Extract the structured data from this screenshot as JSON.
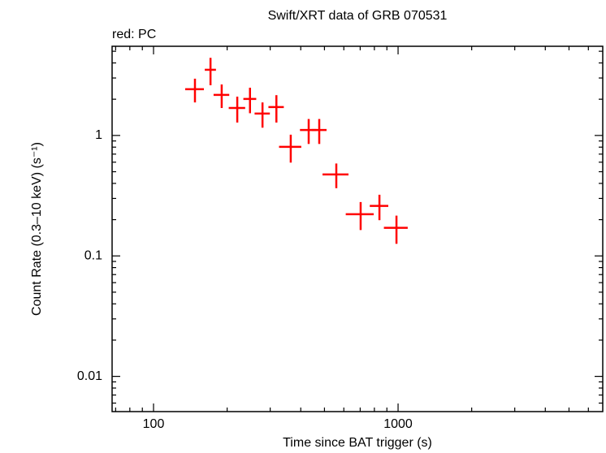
{
  "chart_data": {
    "type": "scatter",
    "title": "Swift/XRT data of GRB 070531",
    "subtitle": "red: PC",
    "x_label": "Time since BAT trigger (s)",
    "y_label": "Count Rate (0.3–10 keV) (s⁻¹)",
    "x_log": true,
    "y_log": true,
    "xlim": [
      67.7,
      6870
    ],
    "ylim": [
      0.0051,
      5.5
    ],
    "xticks": [
      100,
      1000
    ],
    "yticks": [
      0.01,
      0.1,
      1
    ],
    "series": [
      {
        "name": "PC",
        "color": "#ff0000",
        "x": [
          147.7,
          171,
          190,
          220,
          248,
          279,
          318,
          364,
          431,
          476,
          559,
          703,
          839,
          985
        ],
        "values": [
          2.42,
          3.51,
          2.17,
          1.69,
          2.01,
          1.52,
          1.72,
          0.805,
          1.11,
          1.11,
          0.475,
          0.222,
          0.26,
          0.171
        ],
        "xerr": [
          13,
          9,
          14,
          17,
          15,
          20,
          23,
          38,
          34,
          34,
          68,
          92,
          73,
          110
        ],
        "yerr": [
          0.54,
          0.9,
          0.48,
          0.41,
          0.48,
          0.36,
          0.44,
          0.21,
          0.26,
          0.26,
          0.11,
          0.058,
          0.062,
          0.045
        ]
      }
    ]
  }
}
